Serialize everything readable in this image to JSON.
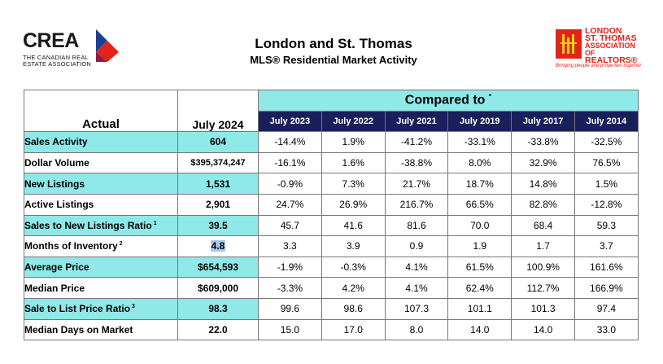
{
  "header": {
    "title": "London and St. Thomas",
    "subtitle": "MLS® Residential Market Activity",
    "crea_logo": {
      "word": "CREA",
      "line1": "THE CANADIAN REAL",
      "line2": "ESTATE ASSOCIATION",
      "icon": "crea-diamond-icon"
    },
    "lstar_logo": {
      "line1": "LONDON",
      "line2": "ST. THOMAS",
      "line3": "ASSOCIATION OF",
      "line4": "REALTORS®",
      "tagline": "Bringing people and properties together",
      "icon": "lstar-flag-icon"
    }
  },
  "table": {
    "actual_label": "Actual",
    "current_label": "July 2024",
    "compared_label": "Compared to",
    "compared_mark": "*",
    "years": [
      "July 2023",
      "July 2022",
      "July 2021",
      "July 2019",
      "July 2017",
      "July 2014"
    ],
    "rows": [
      {
        "label": "Sales Activity",
        "sup": "",
        "value": "604",
        "cmp": [
          "-14.4%",
          "1.9%",
          "-41.2%",
          "-33.1%",
          "-33.8%",
          "-32.5%"
        ]
      },
      {
        "label": "Dollar Volume",
        "sup": "",
        "value": "$395,374,247",
        "cmp": [
          "-16.1%",
          "1.6%",
          "-38.8%",
          "8.0%",
          "32.9%",
          "76.5%"
        ]
      },
      {
        "label": "New Listings",
        "sup": "",
        "value": "1,531",
        "cmp": [
          "-0.9%",
          "7.3%",
          "21.7%",
          "18.7%",
          "14.8%",
          "1.5%"
        ]
      },
      {
        "label": "Active Listings",
        "sup": "",
        "value": "2,901",
        "cmp": [
          "24.7%",
          "26.9%",
          "216.7%",
          "66.5%",
          "82.8%",
          "-12.8%"
        ]
      },
      {
        "label": "Sales to New Listings Ratio",
        "sup": "1",
        "value": "39.5",
        "cmp": [
          "45.7",
          "41.6",
          "81.6",
          "70.0",
          "68.4",
          "59.3"
        ]
      },
      {
        "label": "Months of Inventory",
        "sup": "2",
        "value": "4.8",
        "cmp": [
          "3.3",
          "3.9",
          "0.9",
          "1.9",
          "1.7",
          "3.7"
        ]
      },
      {
        "label": "Average Price",
        "sup": "",
        "value": "$654,593",
        "cmp": [
          "-1.9%",
          "-0.3%",
          "4.1%",
          "61.5%",
          "100.9%",
          "161.6%"
        ]
      },
      {
        "label": "Median Price",
        "sup": "",
        "value": "$609,000",
        "cmp": [
          "-3.3%",
          "4.2%",
          "4.1%",
          "62.4%",
          "112.7%",
          "166.9%"
        ]
      },
      {
        "label": "Sale to List Price Ratio",
        "sup": "3",
        "value": "98.3",
        "cmp": [
          "99.6",
          "98.6",
          "107.3",
          "101.1",
          "101.3",
          "97.4"
        ]
      },
      {
        "label": "Median Days on Market",
        "sup": "",
        "value": "22.0",
        "cmp": [
          "15.0",
          "17.0",
          "8.0",
          "14.0",
          "14.0",
          "33.0"
        ]
      }
    ]
  },
  "colors": {
    "teal": "#8fe9e8",
    "navy": "#1a1f5c",
    "brand_red": "#e2231a",
    "crea_blue": "#1c3f94"
  }
}
